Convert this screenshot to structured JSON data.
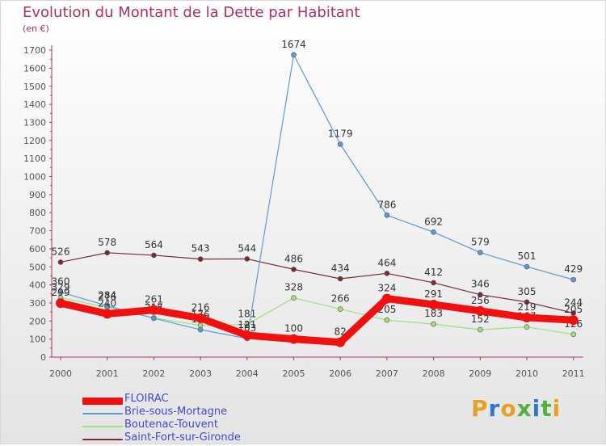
{
  "header": {
    "title": "Evolution du Montant de la Dette par Habitant",
    "unit": "(en €)"
  },
  "brand": {
    "text": "Proxiti",
    "colors": [
      "#e8a020",
      "#2f77c8",
      "#e8a020",
      "#55b040",
      "#2f77c8",
      "#55b040",
      "#e8a020"
    ]
  },
  "chart_data": {
    "type": "line",
    "title": "Evolution du Montant de la Dette par Habitant",
    "ylabel": "(en €)",
    "ylim": [
      0,
      1700
    ],
    "yticks": [
      0,
      100,
      200,
      300,
      400,
      500,
      600,
      700,
      800,
      900,
      1000,
      1100,
      1200,
      1300,
      1400,
      1500,
      1600,
      1700
    ],
    "categories": [
      "2000",
      "2001",
      "2002",
      "2003",
      "2004",
      "2005",
      "2006",
      "2007",
      "2008",
      "2009",
      "2010",
      "2011"
    ],
    "grid": false,
    "legend_position": "bottom-left",
    "series": [
      {
        "name": "Saint-Fort-sur-Gironde",
        "color": "#7a2a32",
        "values": [
          526,
          578,
          564,
          543,
          544,
          486,
          434,
          464,
          412,
          346,
          305,
          244
        ]
      },
      {
        "name": "Boutenac-Touvent",
        "color": "#9ee07a",
        "values": [
          329,
          276,
          217,
          176,
          181,
          328,
          266,
          205,
          183,
          152,
          167,
          126
        ]
      },
      {
        "name": "Brie-sous-Mortagne",
        "color": "#5b9ad8",
        "values": [
          360,
          284,
          215,
          152,
          103,
          1674,
          1179,
          786,
          692,
          579,
          501,
          429
        ]
      },
      {
        "name": "FLOIRAC",
        "color": "#f01010",
        "values": [
          299,
          240,
          261,
          216,
          121,
          100,
          82,
          324,
          291,
          256,
          219,
          205
        ]
      }
    ],
    "legend_order": [
      "FLOIRAC",
      "Brie-sous-Mortagne",
      "Boutenac-Touvent",
      "Saint-Fort-sur-Gironde"
    ]
  }
}
